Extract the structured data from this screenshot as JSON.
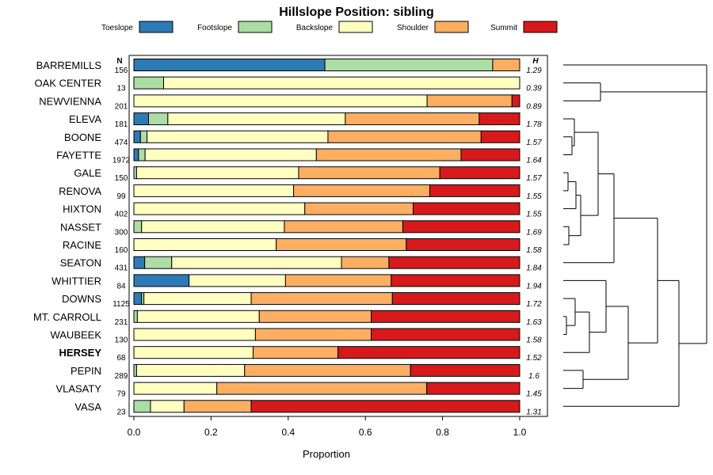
{
  "chart_data": {
    "type": "bar",
    "stacked": true,
    "orientation": "horizontal",
    "title": "Hillslope Position: sibling",
    "xlabel": "Proportion",
    "xlim": [
      0,
      1
    ],
    "xticks": [
      "0.0",
      "0.2",
      "0.4",
      "0.6",
      "0.8",
      "1.0"
    ],
    "count_header": "N",
    "h_header": "H",
    "legend_position": "top",
    "series": [
      {
        "name": "Toeslope",
        "color": "#2c7bb6"
      },
      {
        "name": "Footslope",
        "color": "#abdda4"
      },
      {
        "name": "Backslope",
        "color": "#ffffbf"
      },
      {
        "name": "Shoulder",
        "color": "#fdae61"
      },
      {
        "name": "Summit",
        "color": "#d7191c"
      }
    ],
    "rows": [
      {
        "label": "BARREMILLS",
        "n": "156",
        "h": "1.29",
        "bold": false,
        "values": [
          0.495,
          0.435,
          0.0,
          0.07,
          0.0
        ]
      },
      {
        "label": "OAK CENTER",
        "n": "13",
        "h": "0.39",
        "bold": false,
        "values": [
          0.0,
          0.077,
          0.923,
          0.0,
          0.0
        ]
      },
      {
        "label": "NEWVIENNA",
        "n": "201",
        "h": "0.89",
        "bold": false,
        "values": [
          0.0,
          0.0,
          0.76,
          0.22,
          0.02
        ]
      },
      {
        "label": "ELEVA",
        "n": "181",
        "h": "1.78",
        "bold": false,
        "values": [
          0.038,
          0.05,
          0.46,
          0.347,
          0.105
        ]
      },
      {
        "label": "BOONE",
        "n": "474",
        "h": "1.57",
        "bold": false,
        "values": [
          0.017,
          0.017,
          0.469,
          0.397,
          0.1
        ]
      },
      {
        "label": "FAYETTE",
        "n": "1972",
        "h": "1.64",
        "bold": false,
        "values": [
          0.012,
          0.017,
          0.444,
          0.375,
          0.152
        ]
      },
      {
        "label": "GALE",
        "n": "150",
        "h": "1.57",
        "bold": false,
        "values": [
          0.0,
          0.007,
          0.42,
          0.366,
          0.207
        ]
      },
      {
        "label": "RENOVA",
        "n": "99",
        "h": "1.55",
        "bold": false,
        "values": [
          0.0,
          0.0,
          0.414,
          0.353,
          0.233
        ]
      },
      {
        "label": "HIXTON",
        "n": "402",
        "h": "1.55",
        "bold": false,
        "values": [
          0.0,
          0.0,
          0.443,
          0.281,
          0.276
        ]
      },
      {
        "label": "NASSET",
        "n": "300",
        "h": "1.69",
        "bold": false,
        "values": [
          0.0,
          0.02,
          0.37,
          0.307,
          0.303
        ]
      },
      {
        "label": "RACINE",
        "n": "160",
        "h": "1.58",
        "bold": false,
        "values": [
          0.0,
          0.0,
          0.369,
          0.337,
          0.294
        ]
      },
      {
        "label": "SEATON",
        "n": "431",
        "h": "1.84",
        "bold": false,
        "values": [
          0.028,
          0.07,
          0.44,
          0.123,
          0.339
        ]
      },
      {
        "label": "WHITTIER",
        "n": "84",
        "h": "1.94",
        "bold": false,
        "values": [
          0.143,
          0.0,
          0.25,
          0.274,
          0.333
        ]
      },
      {
        "label": "DOWNS",
        "n": "1125",
        "h": "1.72",
        "bold": false,
        "values": [
          0.02,
          0.006,
          0.278,
          0.366,
          0.33
        ]
      },
      {
        "label": "MT. CARROLL",
        "n": "231",
        "h": "1.63",
        "bold": false,
        "values": [
          0.0,
          0.009,
          0.316,
          0.29,
          0.385
        ]
      },
      {
        "label": "WAUBEEK",
        "n": "130",
        "h": "1.58",
        "bold": false,
        "values": [
          0.0,
          0.0,
          0.315,
          0.3,
          0.385
        ]
      },
      {
        "label": "HERSEY",
        "n": "68",
        "h": "1.52",
        "bold": true,
        "values": [
          0.0,
          0.0,
          0.309,
          0.22,
          0.471
        ]
      },
      {
        "label": "PEPIN",
        "n": "289",
        "h": "1.6",
        "bold": false,
        "values": [
          0.0,
          0.007,
          0.28,
          0.43,
          0.283
        ]
      },
      {
        "label": "VLASATY",
        "n": "79",
        "h": "1.45",
        "bold": false,
        "values": [
          0.0,
          0.0,
          0.215,
          0.544,
          0.241
        ]
      },
      {
        "label": "VASA",
        "n": "23",
        "h": "1.31",
        "bold": false,
        "values": [
          0.0,
          0.043,
          0.087,
          0.174,
          0.696
        ]
      }
    ]
  }
}
